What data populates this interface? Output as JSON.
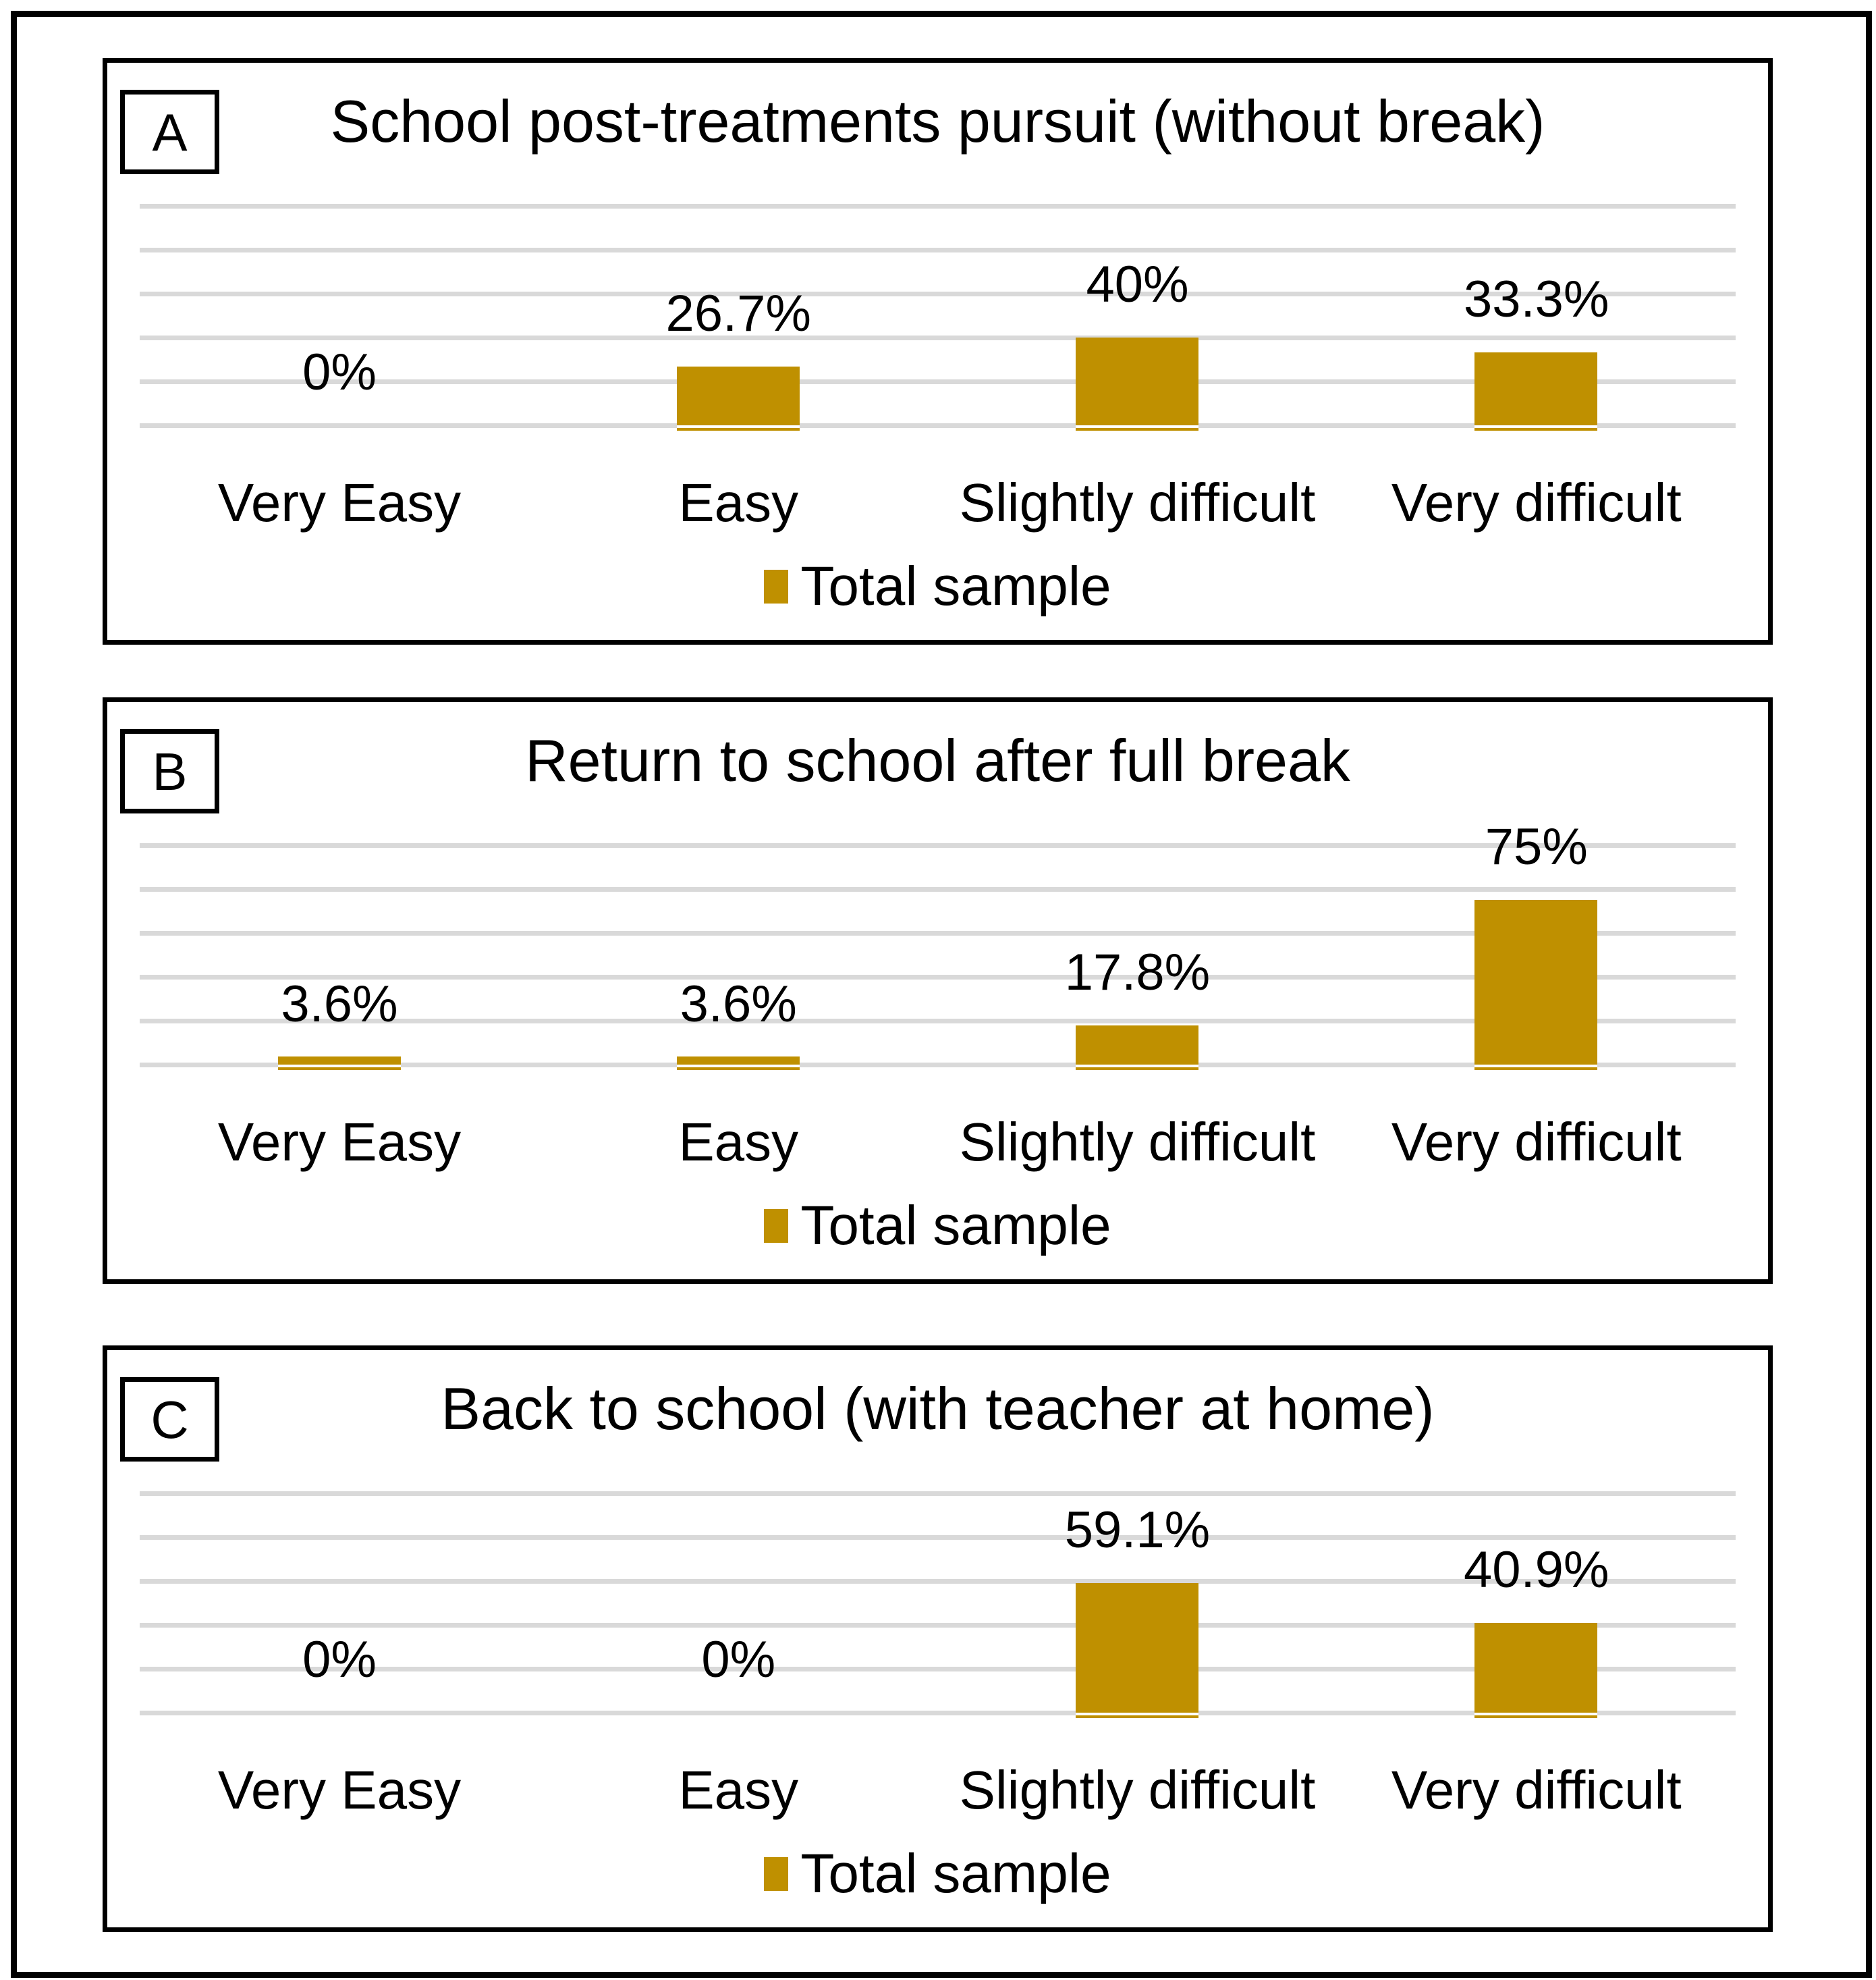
{
  "figure": {
    "background": "#ffffff",
    "frame_color": "#000000",
    "bar_color": "#BF9000",
    "gridline_color": "#D9D9D9",
    "legend_label": "Total sample"
  },
  "chart_data": [
    {
      "type": "bar",
      "panel": "A",
      "title": "School post-treatments pursuit (without break)",
      "categories": [
        "Very Easy",
        "Easy",
        "Slightly difficult",
        "Very difficult"
      ],
      "values": [
        0,
        26.7,
        40,
        33.3
      ],
      "labels": [
        "0%",
        "26.7%",
        "40%",
        "33.3%"
      ],
      "series_name": "Total sample",
      "ylim": [
        0,
        100
      ],
      "gridline_interval": 20,
      "grid": true,
      "legend_position": "bottom",
      "bar_color": "#BF9000"
    },
    {
      "type": "bar",
      "panel": "B",
      "title": "Return to school after full break",
      "categories": [
        "Very Easy",
        "Easy",
        "Slightly difficult",
        "Very difficult"
      ],
      "values": [
        3.6,
        3.6,
        17.8,
        75
      ],
      "labels": [
        "3.6%",
        "3.6%",
        "17.8%",
        "75%"
      ],
      "series_name": "Total sample",
      "ylim": [
        0,
        100
      ],
      "gridline_interval": 20,
      "grid": true,
      "legend_position": "bottom",
      "bar_color": "#BF9000"
    },
    {
      "type": "bar",
      "panel": "C",
      "title": "Back to school (with teacher at home)",
      "categories": [
        "Very Easy",
        "Easy",
        "Slightly difficult",
        "Very difficult"
      ],
      "values": [
        0,
        0,
        59.1,
        40.9
      ],
      "labels": [
        "0%",
        "0%",
        "59.1%",
        "40.9%"
      ],
      "series_name": "Total sample",
      "ylim": [
        0,
        100
      ],
      "gridline_interval": 20,
      "grid": true,
      "legend_position": "bottom",
      "bar_color": "#BF9000"
    }
  ]
}
